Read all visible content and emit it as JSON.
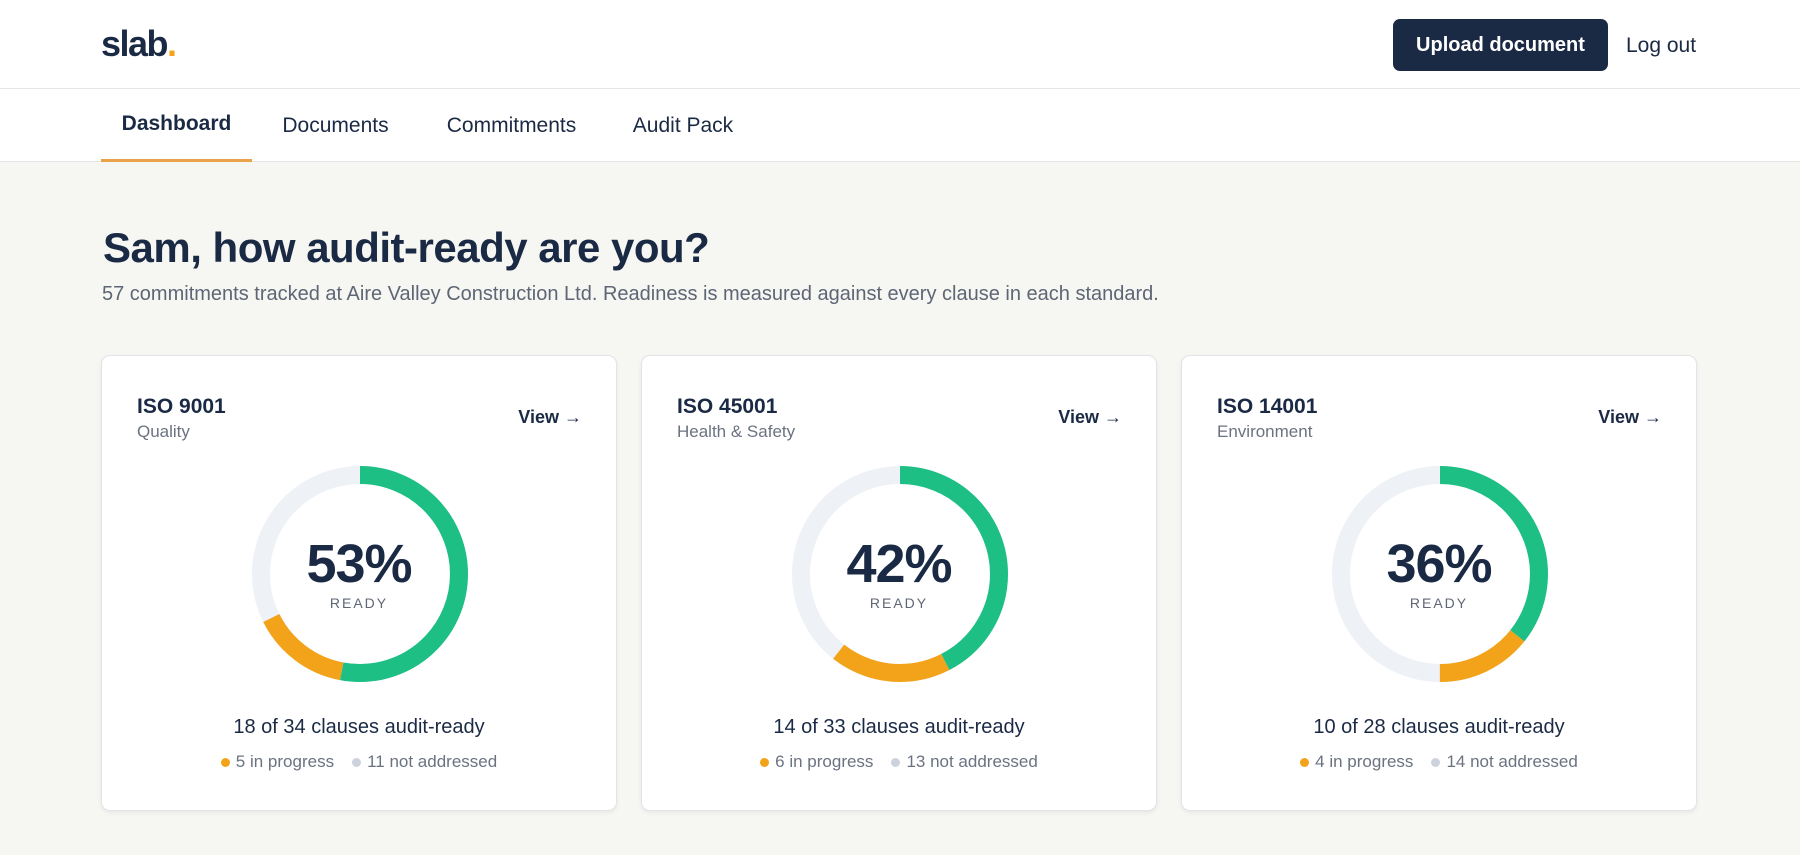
{
  "brand": {
    "logo_text": "slab",
    "logo_dot": ".",
    "accent": "#f2a31a"
  },
  "header": {
    "upload_label": "Upload document",
    "logout_label": "Log out"
  },
  "tabs": [
    {
      "label": "Dashboard",
      "active": true
    },
    {
      "label": "Documents",
      "active": false
    },
    {
      "label": "Commitments",
      "active": false
    },
    {
      "label": "Audit Pack",
      "active": false
    }
  ],
  "main": {
    "headline": "Sam, how audit-ready are you?",
    "subline": "57 commitments tracked at Aire Valley Construction Ltd. Readiness is measured against every clause in each standard."
  },
  "colors": {
    "ready": "#1dbf85",
    "in_progress": "#f2a31a",
    "not_addressed": "#eef1f6",
    "not_addressed_dot": "#cdd3dc"
  },
  "standards": [
    {
      "name": "ISO 9001",
      "category": "Quality",
      "view_label": "View →",
      "percent_label": "53%",
      "ready_label": "READY",
      "ready": 18,
      "in_progress": 5,
      "not_addressed": 11,
      "total": 34,
      "clauses_label": "18 of 34 clauses audit-ready",
      "in_progress_label": "5 in progress",
      "not_addressed_label": "11 not addressed"
    },
    {
      "name": "ISO 45001",
      "category": "Health & Safety",
      "view_label": "View →",
      "percent_label": "42%",
      "ready_label": "READY",
      "ready": 14,
      "in_progress": 6,
      "not_addressed": 13,
      "total": 33,
      "clauses_label": "14 of 33 clauses audit-ready",
      "in_progress_label": "6 in progress",
      "not_addressed_label": "13 not addressed"
    },
    {
      "name": "ISO 14001",
      "category": "Environment",
      "view_label": "View →",
      "percent_label": "36%",
      "ready_label": "READY",
      "ready": 10,
      "in_progress": 4,
      "not_addressed": 14,
      "total": 28,
      "clauses_label": "10 of 28 clauses audit-ready",
      "in_progress_label": "4 in progress",
      "not_addressed_label": "14 not addressed"
    }
  ]
}
